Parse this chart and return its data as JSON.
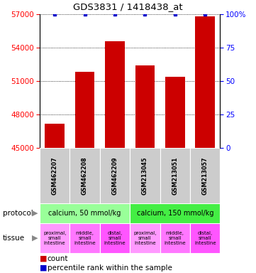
{
  "title": "GDS3831 / 1418438_at",
  "samples": [
    "GSM462207",
    "GSM462208",
    "GSM462209",
    "GSM213045",
    "GSM213051",
    "GSM213057"
  ],
  "counts": [
    47200,
    51800,
    54600,
    52400,
    51400,
    56800
  ],
  "percentile_ranks": [
    100,
    100,
    100,
    100,
    100,
    100
  ],
  "ylim_left": [
    45000,
    57000
  ],
  "ylim_right": [
    0,
    100
  ],
  "yticks_left": [
    45000,
    48000,
    51000,
    54000,
    57000
  ],
  "yticks_right": [
    0,
    25,
    50,
    75,
    100
  ],
  "bar_color": "#cc0000",
  "dot_color": "#0000cc",
  "protocol_groups": [
    {
      "label": "calcium, 50 mmol/kg",
      "start": 0,
      "end": 3,
      "color": "#99ff99"
    },
    {
      "label": "calcium, 150 mmol/kg",
      "start": 3,
      "end": 6,
      "color": "#44ee44"
    }
  ],
  "tissue_labels": [
    "proximal,\nsmall\nintestine",
    "middle,\nsmall\nintestine",
    "distal,\nsmall\nintestine",
    "proximal,\nsmall\nintestine",
    "middle,\nsmall\nintestine",
    "distal,\nsmall\nintestine"
  ],
  "tissue_colors": [
    "#ff99ff",
    "#ff77ff",
    "#ff55ff",
    "#ff99ff",
    "#ff77ff",
    "#ff55ff"
  ],
  "sample_box_color": "#cccccc",
  "background_color": "#ffffff"
}
